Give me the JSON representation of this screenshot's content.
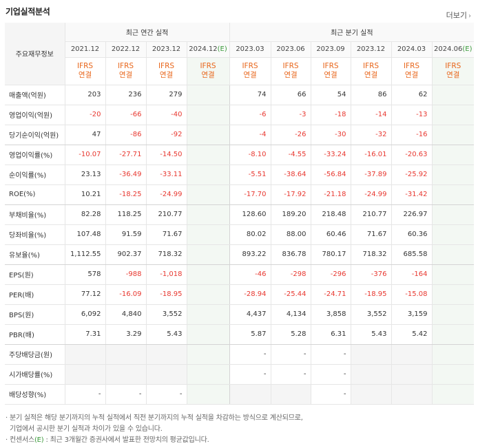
{
  "header": {
    "title": "기업실적분석",
    "more_label": "더보기"
  },
  "table": {
    "label_header": "주요재무정보",
    "group_annual": "최근 연간 실적",
    "group_quarter": "최근 분기 실적",
    "periods_annual": [
      "2021.12",
      "2022.12",
      "2023.12",
      "2024.12"
    ],
    "periods_quarter": [
      "2023.03",
      "2023.06",
      "2023.09",
      "2023.12",
      "2024.03",
      "2024.06"
    ],
    "estimate_marker": "(E)",
    "ifrs_line1": "IFRS",
    "ifrs_line2": "연결",
    "rows": [
      {
        "label": "매출액(억원)",
        "values": [
          "203",
          "236",
          "279",
          "",
          "74",
          "66",
          "54",
          "86",
          "62",
          ""
        ]
      },
      {
        "label": "영업이익(억원)",
        "values": [
          "-20",
          "-66",
          "-40",
          "",
          "-6",
          "-3",
          "-18",
          "-14",
          "-13",
          ""
        ]
      },
      {
        "label": "당기순이익(억원)",
        "values": [
          "47",
          "-86",
          "-92",
          "",
          "-4",
          "-26",
          "-30",
          "-32",
          "-16",
          ""
        ]
      },
      {
        "label": "영업이익률(%)",
        "values": [
          "-10.07",
          "-27.71",
          "-14.50",
          "",
          "-8.10",
          "-4.55",
          "-33.24",
          "-16.01",
          "-20.63",
          ""
        ]
      },
      {
        "label": "순이익률(%)",
        "values": [
          "23.13",
          "-36.49",
          "-33.11",
          "",
          "-5.51",
          "-38.64",
          "-56.84",
          "-37.89",
          "-25.92",
          ""
        ]
      },
      {
        "label": "ROE(%)",
        "values": [
          "10.21",
          "-18.25",
          "-24.99",
          "",
          "-17.70",
          "-17.92",
          "-21.18",
          "-24.99",
          "-31.42",
          ""
        ]
      },
      {
        "label": "부채비율(%)",
        "values": [
          "82.28",
          "118.25",
          "210.77",
          "",
          "128.60",
          "189.20",
          "218.48",
          "210.77",
          "226.97",
          ""
        ]
      },
      {
        "label": "당좌비율(%)",
        "values": [
          "107.48",
          "91.59",
          "71.67",
          "",
          "80.02",
          "88.00",
          "60.46",
          "71.67",
          "60.36",
          ""
        ]
      },
      {
        "label": "유보율(%)",
        "values": [
          "1,112.55",
          "902.37",
          "718.32",
          "",
          "893.22",
          "836.78",
          "780.17",
          "718.32",
          "685.58",
          ""
        ]
      },
      {
        "label": "EPS(원)",
        "values": [
          "578",
          "-988",
          "-1,018",
          "",
          "-46",
          "-298",
          "-296",
          "-376",
          "-164",
          ""
        ]
      },
      {
        "label": "PER(배)",
        "values": [
          "77.12",
          "-16.09",
          "-18.95",
          "",
          "-28.94",
          "-25.44",
          "-24.71",
          "-18.95",
          "-15.08",
          ""
        ]
      },
      {
        "label": "BPS(원)",
        "values": [
          "6,092",
          "4,840",
          "3,552",
          "",
          "4,437",
          "4,134",
          "3,858",
          "3,552",
          "3,159",
          ""
        ]
      },
      {
        "label": "PBR(배)",
        "values": [
          "7.31",
          "3.29",
          "5.43",
          "",
          "5.87",
          "5.28",
          "6.31",
          "5.43",
          "5.42",
          ""
        ]
      },
      {
        "label": "주당배당금(원)",
        "values": [
          "",
          "",
          "",
          "",
          "-",
          "-",
          "-",
          "",
          "",
          ""
        ]
      },
      {
        "label": "시가배당률(%)",
        "values": [
          "",
          "",
          "",
          "",
          "-",
          "-",
          "-",
          "",
          "",
          ""
        ]
      },
      {
        "label": "배당성향(%)",
        "values": [
          "-",
          "-",
          "-",
          "",
          "",
          "",
          "-",
          "",
          "",
          ""
        ]
      }
    ]
  },
  "notes": {
    "line1": "· 분기 실적은 해당 분기까지의 누적 실적에서 직전 분기까지의 누적 실적을 차감하는 방식으로 계산되므로,",
    "line2": "  기업에서 공시한 분기 실적과 차이가 있을 수 있습니다.",
    "line3_prefix": "· 컨센서스",
    "line3_marker": "(E)",
    "line3_suffix": " : 최근 3개월간 증권사에서 발표한 전망치의 평균값입니다."
  }
}
